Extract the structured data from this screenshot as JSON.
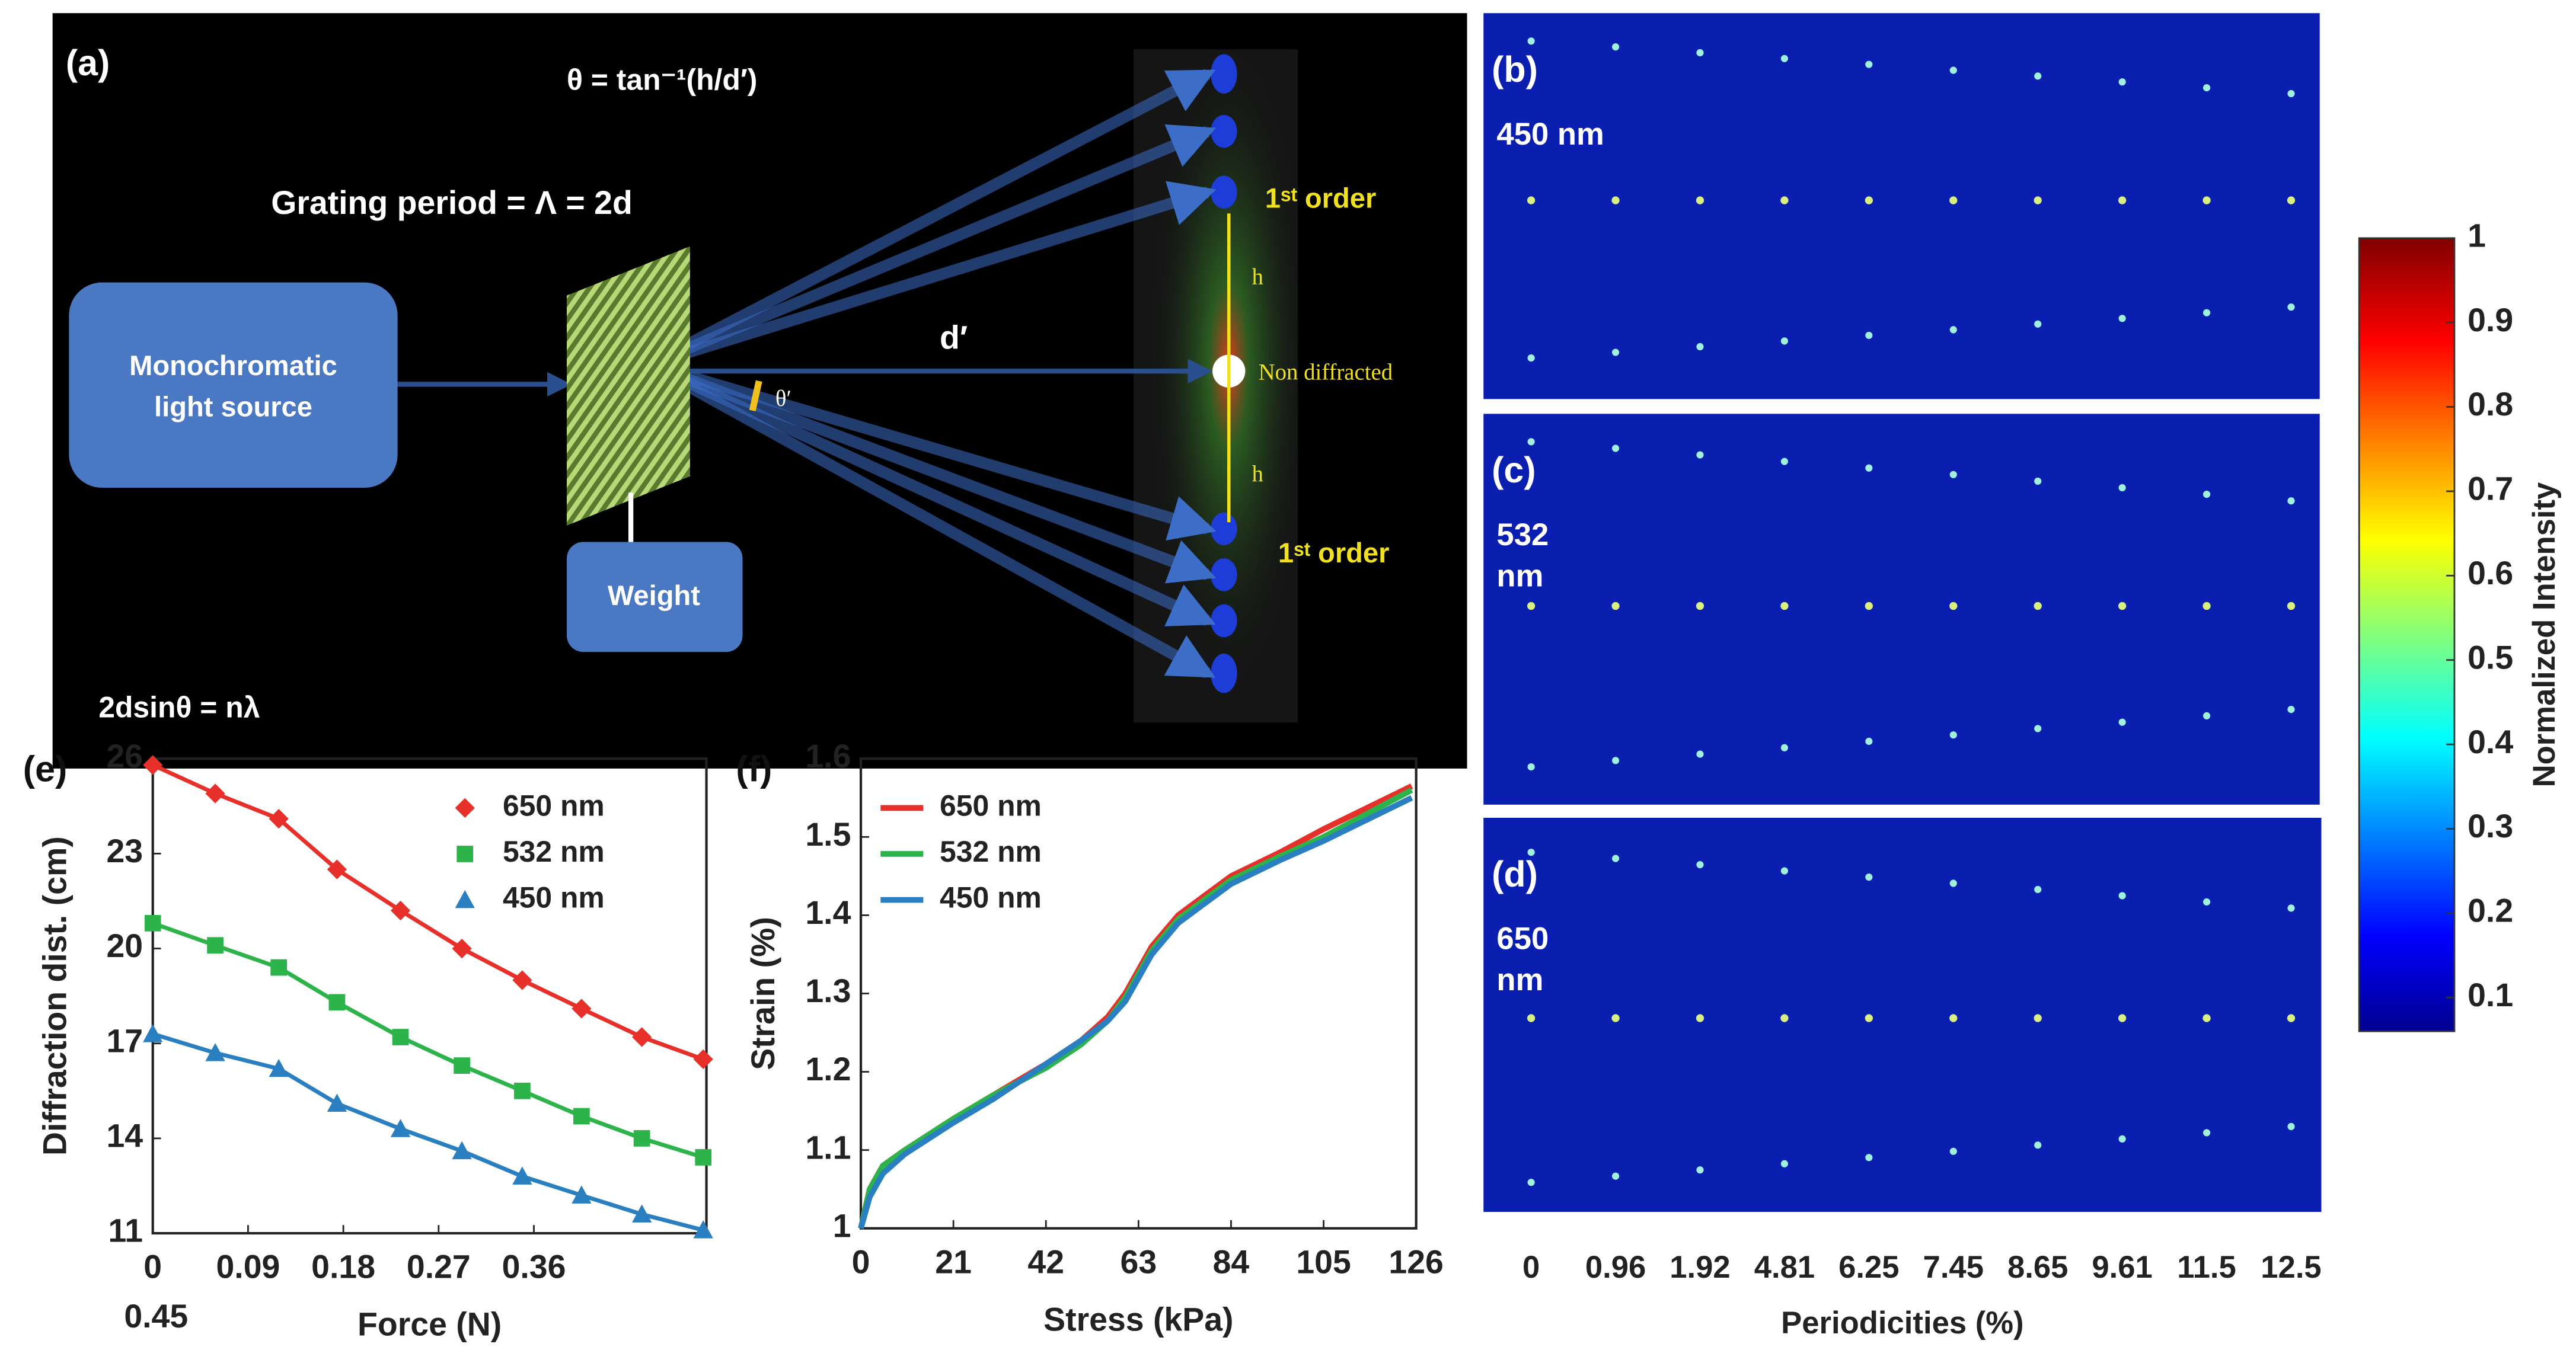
{
  "diagram": {
    "label": "(a)",
    "angle_formula": "θ = tan⁻¹(h/d′)",
    "grating": "Grating period = Λ = 2d",
    "source": [
      "Monochromatic",
      "light source"
    ],
    "weight": "Weight",
    "bragg": "2dsinθ = nλ",
    "distance": "d′",
    "angle": "θ′",
    "h": [
      "h",
      "h"
    ],
    "orders": [
      "1ˢᵗ order",
      "1ˢᵗ order"
    ],
    "center": "Non diffracted"
  },
  "chart_data": [
    {
      "type": "spots",
      "panels": [
        {
          "label": "(b)",
          "wavelength": [
            "450 nm"
          ]
        },
        {
          "label": "(c)",
          "wavelength": [
            "532",
            "nm"
          ]
        },
        {
          "label": "(d)",
          "wavelength": [
            "650",
            "nm"
          ]
        }
      ],
      "categories": [
        "0",
        "0.96",
        "1.92",
        "4.81",
        "6.25",
        "7.45",
        "8.65",
        "9.61",
        "11.5",
        "12.5"
      ],
      "xlabel": "Periodicities (%)",
      "colorbar": {
        "label": "Normalized Intensity",
        "lim": [
          0.06,
          1
        ],
        "ticks": [
          0.1,
          0.2,
          0.3,
          0.4,
          0.5,
          0.6,
          0.7,
          0.8,
          0.9,
          1
        ]
      }
    },
    {
      "type": "line",
      "label": "(e)",
      "xlabel": "Force (N)",
      "ylabel": "Diffraction dist. (cm)",
      "annotation": "0.45",
      "x": [
        0,
        0.059,
        0.119,
        0.174,
        0.234,
        0.292,
        0.349,
        0.405,
        0.462,
        0.52
      ],
      "xlim": [
        0,
        0.523
      ],
      "xticks": [
        0,
        0.09,
        0.18,
        0.27,
        0.36
      ],
      "ylim": [
        11,
        26
      ],
      "yticks": [
        11,
        14,
        17,
        20,
        23,
        26
      ],
      "legend": "upper right",
      "series": [
        {
          "name": "650 nm",
          "color": "#e8302a",
          "marker": "diamond",
          "values": [
            25.8,
            24.9,
            24.1,
            22.5,
            21.2,
            20.0,
            19.0,
            18.1,
            17.2,
            16.5
          ]
        },
        {
          "name": "532 nm",
          "color": "#2cb34a",
          "marker": "square",
          "values": [
            20.8,
            20.1,
            19.4,
            18.3,
            17.2,
            16.3,
            15.5,
            14.7,
            14.0,
            13.4
          ]
        },
        {
          "name": "450 nm",
          "color": "#2a7fc1",
          "marker": "triangle",
          "values": [
            17.3,
            16.7,
            16.2,
            15.1,
            14.3,
            13.6,
            12.8,
            12.2,
            11.6,
            11.1
          ]
        }
      ]
    },
    {
      "type": "line",
      "label": "(f)",
      "xlabel": "Stress (kPa)",
      "ylabel": "Strain (%)",
      "x": [
        0,
        2,
        5,
        10,
        21,
        30,
        42,
        50,
        56,
        60,
        63,
        66,
        72,
        84,
        95,
        105,
        125
      ],
      "xlim": [
        0,
        126
      ],
      "xticks": [
        0,
        21,
        42,
        63,
        84,
        105,
        126
      ],
      "ylim": [
        1,
        1.6
      ],
      "yticks": [
        1,
        1.1,
        1.2,
        1.3,
        1.4,
        1.5,
        1.6
      ],
      "legend": "upper left",
      "series": [
        {
          "name": "650 nm",
          "color": "#e8302a",
          "values": [
            1.0,
            1.05,
            1.08,
            1.1,
            1.14,
            1.17,
            1.21,
            1.24,
            1.27,
            1.3,
            1.33,
            1.36,
            1.4,
            1.45,
            1.48,
            1.51,
            1.565
          ]
        },
        {
          "name": "532 nm",
          "color": "#2cb34a",
          "values": [
            1.0,
            1.05,
            1.08,
            1.1,
            1.14,
            1.17,
            1.205,
            1.235,
            1.265,
            1.295,
            1.325,
            1.355,
            1.395,
            1.445,
            1.475,
            1.5,
            1.56
          ]
        },
        {
          "name": "450 nm",
          "color": "#2a7fc1",
          "values": [
            1.0,
            1.04,
            1.07,
            1.095,
            1.135,
            1.165,
            1.21,
            1.24,
            1.265,
            1.29,
            1.32,
            1.35,
            1.39,
            1.44,
            1.47,
            1.495,
            1.55
          ]
        }
      ]
    }
  ]
}
